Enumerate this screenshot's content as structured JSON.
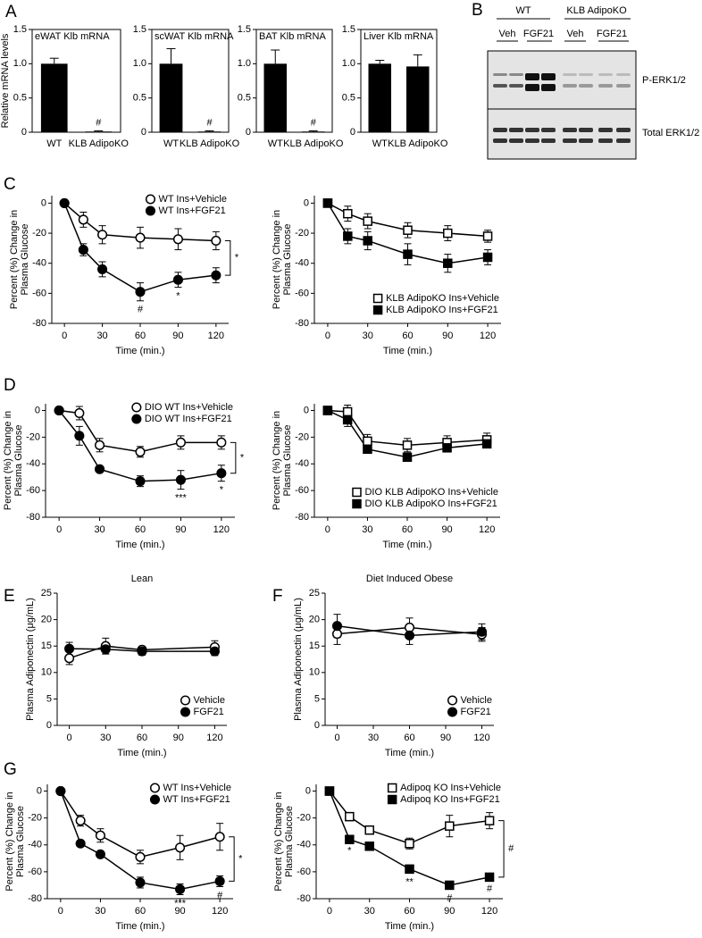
{
  "panel_labels": [
    "A",
    "B",
    "C",
    "D",
    "E",
    "F",
    "G"
  ],
  "blot": {
    "groups": [
      "WT",
      "KLB AdipoKO"
    ],
    "lanes": [
      "Veh",
      "FGF21",
      "Veh",
      "FGF21"
    ],
    "rows": [
      "P-ERK1/2",
      "Total ERK1/2"
    ]
  },
  "chart_data": [
    {
      "type": "bar",
      "title": "eWAT Klb mRNA",
      "ylabel": "Relative mRNA levels",
      "categories": [
        "WT",
        "KLB AdipoKO"
      ],
      "values": [
        1.0,
        0.01
      ],
      "errors": [
        0.08,
        0.01
      ],
      "color": "#000000",
      "ylim": [
        0,
        1.5
      ],
      "yticks": [
        0,
        0.5,
        {
          "value": 1,
          "label": "1.0"
        },
        1.5
      ],
      "annotations": [
        {
          "x": "KLB AdipoKO",
          "text": "#"
        }
      ]
    },
    {
      "type": "bar",
      "title": "scWAT Klb mRNA",
      "categories": [
        "WT",
        "KLB AdipoKO"
      ],
      "values": [
        1.0,
        0.01
      ],
      "errors": [
        0.22,
        0.01
      ],
      "color": "#000000",
      "ylim": [
        0,
        1.5
      ],
      "yticks": [
        0,
        0.5,
        {
          "value": 1,
          "label": "1.0"
        },
        1.5
      ],
      "annotations": [
        {
          "x": "KLB AdipoKO",
          "text": "#"
        }
      ]
    },
    {
      "type": "bar",
      "title": "BAT Klb mRNA",
      "categories": [
        "WT",
        "KLB AdipoKO"
      ],
      "values": [
        1.0,
        0.01
      ],
      "errors": [
        0.2,
        0.01
      ],
      "color": "#000000",
      "ylim": [
        0,
        1.5
      ],
      "yticks": [
        0,
        0.5,
        {
          "value": 1,
          "label": "1.0"
        },
        1.5
      ],
      "annotations": [
        {
          "x": "KLB AdipoKO",
          "text": "#"
        }
      ]
    },
    {
      "type": "bar",
      "title": "Liver Klb mRNA",
      "categories": [
        "WT",
        "KLB AdipoKO"
      ],
      "values": [
        1.0,
        0.96
      ],
      "errors": [
        0.05,
        0.17
      ],
      "color": "#000000",
      "ylim": [
        0,
        1.5
      ],
      "yticks": [
        0,
        0.5,
        {
          "value": 1,
          "label": "1.0"
        },
        1.5
      ]
    },
    {
      "type": "line",
      "ylabel": [
        "Percent (%) Change in",
        "Plasma Glucose"
      ],
      "xlabel": "Time (min.)",
      "x": [
        0,
        15,
        30,
        60,
        90,
        120
      ],
      "xlim": [
        -10,
        130
      ],
      "xticks": [
        0,
        30,
        60,
        90,
        120
      ],
      "ylim": [
        -80,
        5
      ],
      "yticks": [
        0,
        -20,
        -40,
        -60,
        -80
      ],
      "legend": "upper right",
      "bracket_label": "*",
      "series": [
        {
          "name": "WT Ins+Vehicle",
          "marker": "circle",
          "color": "#ffffff",
          "values": [
            0,
            -11,
            -21,
            -23,
            -24,
            -25
          ],
          "errors": [
            0,
            5,
            6,
            7,
            7,
            6
          ]
        },
        {
          "name": "WT Ins+FGF21",
          "marker": "circle",
          "color": "#000000",
          "values": [
            0,
            -31,
            -44,
            -59,
            -51,
            -48
          ],
          "errors": [
            0,
            4,
            5,
            6,
            5,
            5
          ],
          "annotations": [
            {
              "x": 60,
              "text": "#"
            },
            {
              "x": 90,
              "text": "*"
            }
          ]
        }
      ]
    },
    {
      "type": "line",
      "ylabel": [
        "Percent (%) Change in",
        "Plasma Glucose"
      ],
      "xlabel": "Time (min.)",
      "x": [
        0,
        15,
        30,
        60,
        90,
        120
      ],
      "xlim": [
        -10,
        130
      ],
      "xticks": [
        0,
        30,
        60,
        90,
        120
      ],
      "ylim": [
        -80,
        5
      ],
      "yticks": [
        0,
        -20,
        -40,
        -60,
        -80
      ],
      "legend": "lower right",
      "series": [
        {
          "name": "KLB AdipoKO Ins+Vehicle",
          "marker": "square",
          "color": "#ffffff",
          "values": [
            0,
            -7,
            -12,
            -18,
            -20,
            -22
          ],
          "errors": [
            0,
            5,
            5,
            5,
            5,
            4
          ]
        },
        {
          "name": "KLB AdipoKO Ins+FGF21",
          "marker": "square",
          "color": "#000000",
          "values": [
            0,
            -22,
            -25,
            -34,
            -40,
            -36
          ],
          "errors": [
            0,
            5,
            6,
            7,
            6,
            5
          ]
        }
      ]
    },
    {
      "type": "line",
      "ylabel": [
        "Percent (%) Change in",
        "Plasma Glucose"
      ],
      "xlabel": "Time (min.)",
      "x": [
        0,
        15,
        30,
        60,
        90,
        120
      ],
      "xlim": [
        -10,
        130
      ],
      "xticks": [
        0,
        30,
        60,
        90,
        120
      ],
      "ylim": [
        -80,
        5
      ],
      "yticks": [
        0,
        -20,
        -40,
        -60,
        -80
      ],
      "legend": "upper right",
      "bracket_label": "*",
      "series": [
        {
          "name": "DIO WT Ins+Vehicle",
          "marker": "circle",
          "color": "#ffffff",
          "values": [
            0,
            -2,
            -26,
            -31,
            -24,
            -24
          ],
          "errors": [
            0,
            5,
            5,
            4,
            5,
            5
          ]
        },
        {
          "name": "DIO WT Ins+FGF21",
          "marker": "circle",
          "color": "#000000",
          "values": [
            0,
            -19,
            -44,
            -53,
            -52,
            -47
          ],
          "errors": [
            0,
            7,
            2,
            4,
            7,
            6
          ],
          "annotations": [
            {
              "x": 90,
              "text": "***"
            },
            {
              "x": 120,
              "text": "*"
            }
          ]
        }
      ]
    },
    {
      "type": "line",
      "ylabel": [
        "Percent (%) Change in",
        "Plasma Glucose"
      ],
      "xlabel": "Time (min.)",
      "x": [
        0,
        15,
        30,
        60,
        90,
        120
      ],
      "xlim": [
        -10,
        130
      ],
      "xticks": [
        0,
        30,
        60,
        90,
        120
      ],
      "ylim": [
        -80,
        5
      ],
      "yticks": [
        0,
        -20,
        -40,
        -60,
        -80
      ],
      "legend": "lower right",
      "series": [
        {
          "name": "DIO KLB AdipoKO Ins+Vehicle",
          "marker": "square",
          "color": "#ffffff",
          "values": [
            0,
            -1,
            -23,
            -26,
            -24,
            -22
          ],
          "errors": [
            0,
            5,
            5,
            5,
            5,
            5
          ]
        },
        {
          "name": "DIO KLB AdipoKO Ins+FGF21",
          "marker": "square",
          "color": "#000000",
          "values": [
            0,
            -7,
            -29,
            -35,
            -28,
            -25
          ],
          "errors": [
            0,
            5,
            3,
            3,
            3,
            3
          ]
        }
      ]
    },
    {
      "type": "line",
      "title": "Lean",
      "ylabel": [
        "Plasma Adiponectin (μg/mL)"
      ],
      "xlabel": "Time (min.)",
      "x": [
        0,
        30,
        60,
        120
      ],
      "xlim": [
        -10,
        130
      ],
      "xticks": [
        0,
        30,
        60,
        90,
        120
      ],
      "ylim": [
        0,
        25
      ],
      "yticks": [
        0,
        5,
        10,
        15,
        20,
        25
      ],
      "legend": "lower right",
      "series": [
        {
          "name": "Vehicle",
          "marker": "circle",
          "color": "#ffffff",
          "values": [
            12.7,
            15,
            14.3,
            14.8
          ],
          "errors": [
            1.2,
            1.5,
            0.6,
            1.2
          ]
        },
        {
          "name": "FGF21",
          "marker": "circle",
          "color": "#000000",
          "values": [
            14.5,
            14.4,
            14,
            14
          ],
          "errors": [
            1.2,
            0.9,
            0.7,
            0.8
          ]
        }
      ]
    },
    {
      "type": "line",
      "title": "Diet Induced Obese",
      "ylabel": [
        "Plasma Adiponectin (μg/mL)"
      ],
      "xlabel": "Time (min.)",
      "x": [
        0,
        60,
        120
      ],
      "xlim": [
        -10,
        130
      ],
      "xticks": [
        0,
        30,
        60,
        90,
        120
      ],
      "ylim": [
        0,
        25
      ],
      "yticks": [
        0,
        5,
        10,
        15,
        20,
        25
      ],
      "legend": "lower right",
      "series": [
        {
          "name": "Vehicle",
          "marker": "circle",
          "color": "#ffffff",
          "values": [
            17.3,
            18.5,
            17.2
          ],
          "errors": [
            2,
            1.8,
            1.3
          ]
        },
        {
          "name": "FGF21",
          "marker": "circle",
          "color": "#000000",
          "values": [
            18.8,
            17,
            17.7
          ],
          "errors": [
            2.2,
            1.7,
            1.5
          ]
        }
      ]
    },
    {
      "type": "line",
      "ylabel": [
        "Percent (%) Change in",
        "Plasma Glucose"
      ],
      "xlabel": "Time (min.)",
      "x": [
        0,
        15,
        30,
        60,
        90,
        120
      ],
      "xlim": [
        -10,
        130
      ],
      "xticks": [
        0,
        30,
        60,
        90,
        120
      ],
      "ylim": [
        -80,
        5
      ],
      "yticks": [
        0,
        -20,
        -40,
        -60,
        -80
      ],
      "legend": "upper right",
      "bracket_label": "*",
      "series": [
        {
          "name": "WT Ins+Vehicle",
          "marker": "circle",
          "color": "#ffffff",
          "values": [
            0,
            -22,
            -33,
            -49,
            -42,
            -34
          ],
          "errors": [
            0,
            4,
            5,
            5,
            9,
            10
          ]
        },
        {
          "name": "WT Ins+FGF21",
          "marker": "circle",
          "color": "#000000",
          "values": [
            0,
            -39,
            -47,
            -68,
            -73,
            -67
          ],
          "errors": [
            0,
            2,
            2,
            4,
            4,
            4
          ],
          "annotations": [
            {
              "x": 90,
              "text": "***"
            },
            {
              "x": 120,
              "text": "#"
            }
          ]
        }
      ]
    },
    {
      "type": "line",
      "ylabel": [
        "Percent (%) Change in",
        "Plasma Glucose"
      ],
      "xlabel": "Time (min.)",
      "x": [
        0,
        15,
        30,
        60,
        90,
        120
      ],
      "xlim": [
        -10,
        130
      ],
      "xticks": [
        0,
        30,
        60,
        90,
        120
      ],
      "ylim": [
        -80,
        5
      ],
      "yticks": [
        0,
        -20,
        -40,
        -60,
        -80
      ],
      "legend": "upper right",
      "bracket_label": "#",
      "series": [
        {
          "name": "Adipoq KO Ins+Vehicle",
          "marker": "square",
          "color": "#ffffff",
          "values": [
            0,
            -19,
            -29,
            -39,
            -26,
            -22
          ],
          "errors": [
            0,
            3,
            2,
            4,
            8,
            6
          ]
        },
        {
          "name": "Adipoq KO Ins+FGF21",
          "marker": "square",
          "color": "#000000",
          "values": [
            0,
            -36,
            -41,
            -58,
            -70,
            -64
          ],
          "errors": [
            0,
            2,
            2,
            3,
            3,
            2
          ],
          "annotations": [
            {
              "x": 15,
              "text": "*"
            },
            {
              "x": 60,
              "text": "**"
            },
            {
              "x": 90,
              "text": "#"
            },
            {
              "x": 120,
              "text": "#"
            }
          ]
        }
      ]
    }
  ]
}
